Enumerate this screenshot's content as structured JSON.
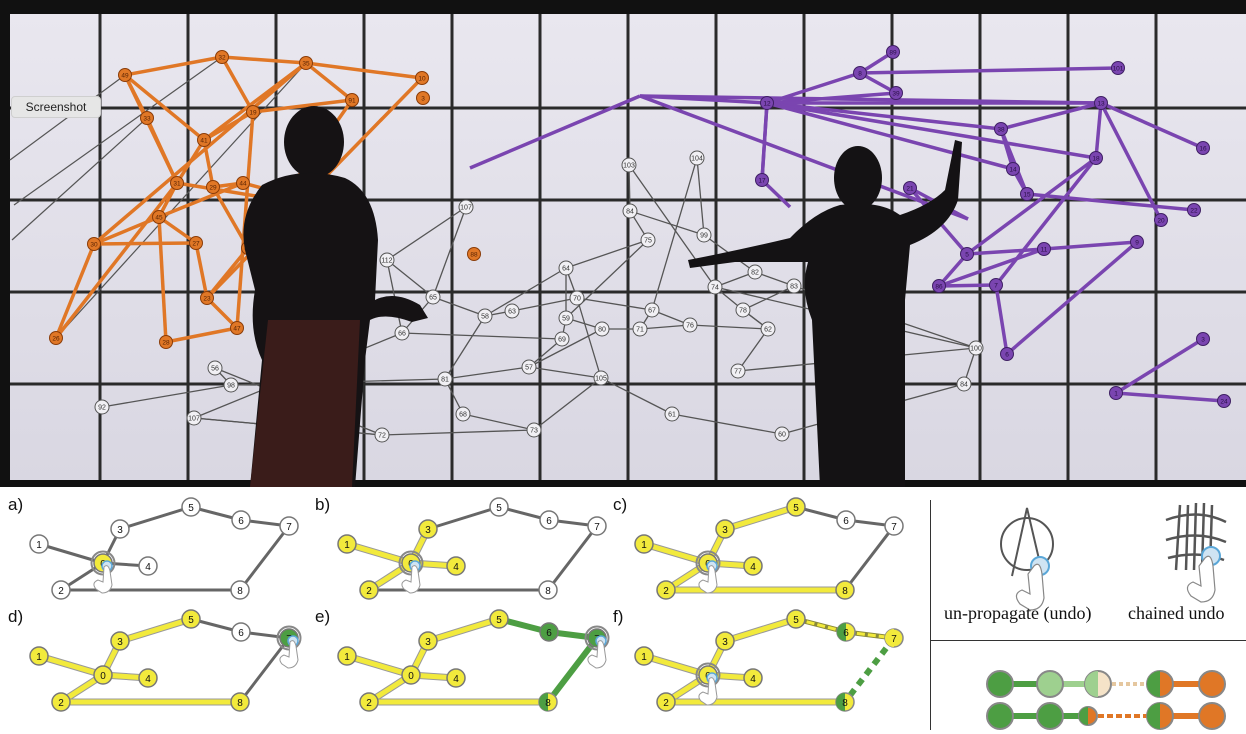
{
  "screenshot_button": {
    "label": "Screenshot"
  },
  "colors": {
    "orange": "#e07726",
    "purple": "#7a45b0",
    "yellow": "#f2ea3c",
    "green": "#4d9e43",
    "light_green": "#9ed08f",
    "grey_edge": "#555555"
  },
  "wall": {
    "orange_labels": [
      "49",
      "32",
      "33",
      "35",
      "10",
      "3",
      "91",
      "19",
      "41",
      "31",
      "29",
      "44",
      "45",
      "42",
      "30",
      "27",
      "23",
      "47",
      "26",
      "28",
      "88",
      "28"
    ],
    "purple_labels": [
      "89",
      "8",
      "101",
      "39",
      "12",
      "13",
      "38",
      "16",
      "17",
      "18",
      "14",
      "15",
      "21",
      "22",
      "20",
      "9",
      "11",
      "5",
      "86",
      "7",
      "6",
      "24",
      "1",
      "3"
    ],
    "grey_labels": [
      "104",
      "103",
      "107",
      "84",
      "99",
      "75",
      "112",
      "64",
      "82",
      "74",
      "83",
      "65",
      "58",
      "63",
      "70",
      "59",
      "67",
      "78",
      "66",
      "80",
      "71",
      "76",
      "62",
      "69",
      "56",
      "98",
      "81",
      "57",
      "105",
      "77",
      "100",
      "84",
      "92",
      "107",
      "68",
      "61",
      "73",
      "72",
      "60"
    ]
  },
  "panels": [
    {
      "label": "a)",
      "node_labels": [
        "0",
        "1",
        "2",
        "3",
        "4",
        "5",
        "6",
        "7",
        "8"
      ]
    },
    {
      "label": "b)",
      "node_labels": [
        "0",
        "1",
        "2",
        "3",
        "4",
        "5",
        "6",
        "7",
        "8"
      ]
    },
    {
      "label": "c)",
      "node_labels": [
        "0",
        "1",
        "2",
        "3",
        "4",
        "5",
        "6",
        "7",
        "8"
      ]
    },
    {
      "label": "d)",
      "node_labels": [
        "0",
        "1",
        "2",
        "3",
        "4",
        "5",
        "6",
        "7",
        "8"
      ]
    },
    {
      "label": "e)",
      "node_labels": [
        "0",
        "1",
        "2",
        "3",
        "4",
        "5",
        "6",
        "7",
        "8"
      ]
    },
    {
      "label": "f)",
      "node_labels": [
        "0",
        "1",
        "2",
        "3",
        "4",
        "5",
        "6",
        "7",
        "8"
      ]
    }
  ],
  "gestures": {
    "undo_caption": "un-propagate (undo)",
    "chained_caption": "chained undo"
  }
}
